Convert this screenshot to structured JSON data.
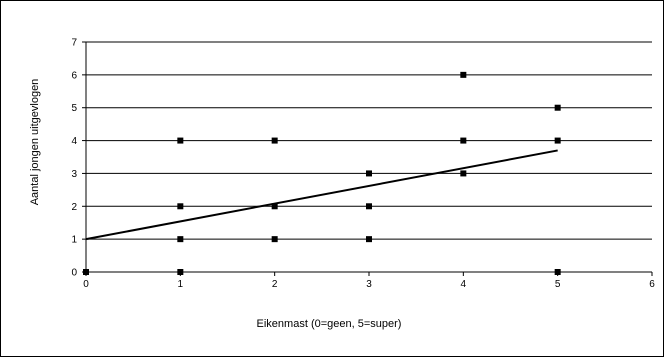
{
  "chart_data": {
    "type": "scatter",
    "title": "",
    "xlabel": "Eikenmast  (0=geen, 5=super)",
    "ylabel": "Aantal jongen uitgevlogen",
    "xlim": [
      0,
      6
    ],
    "ylim": [
      0,
      7
    ],
    "x_ticks": [
      0,
      1,
      2,
      3,
      4,
      5,
      6
    ],
    "y_ticks": [
      0,
      1,
      2,
      3,
      4,
      5,
      6,
      7
    ],
    "grid": "horizontal",
    "legend": "none",
    "series": [
      {
        "points": [
          [
            0,
            0
          ],
          [
            1,
            0
          ],
          [
            1,
            1
          ],
          [
            1,
            2
          ],
          [
            1,
            4
          ],
          [
            2,
            1
          ],
          [
            2,
            2
          ],
          [
            2,
            4
          ],
          [
            3,
            1
          ],
          [
            3,
            2
          ],
          [
            3,
            3
          ],
          [
            4,
            3
          ],
          [
            4,
            4
          ],
          [
            4,
            6
          ],
          [
            5,
            0
          ],
          [
            5,
            4
          ],
          [
            5,
            5
          ]
        ],
        "marker": "square",
        "color": "#000000"
      }
    ],
    "trendline": {
      "x": [
        0,
        5
      ],
      "y": [
        1.0,
        3.7
      ],
      "color": "#000000"
    }
  }
}
